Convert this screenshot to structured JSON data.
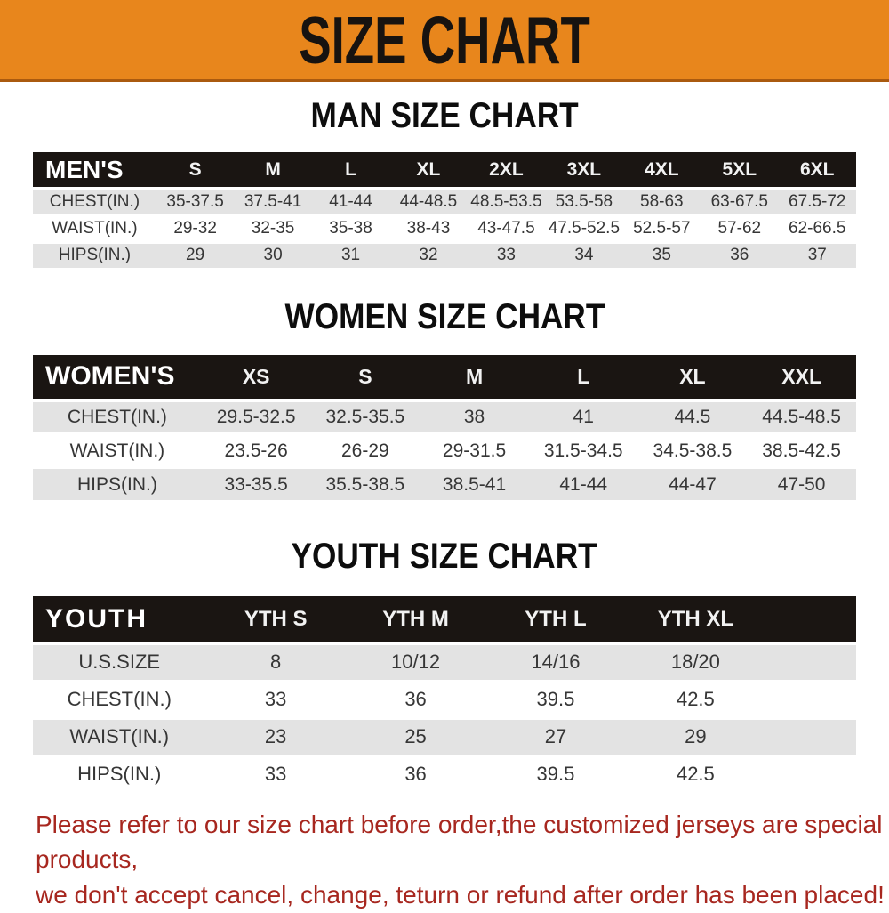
{
  "banner": {
    "title": "SIZE CHART"
  },
  "colors": {
    "banner_bg": "#e8861c",
    "banner_border": "#aa5a0f",
    "table_header_bg": "#1a1512",
    "row_alt_gray": "#e3e3e3",
    "note_red": "#a7271f"
  },
  "sections": [
    {
      "id": "men",
      "heading": "MAN SIZE CHART",
      "table": {
        "header": [
          "MEN'S",
          "S",
          "M",
          "L",
          "XL",
          "2XL",
          "3XL",
          "4XL",
          "5XL",
          "6XL"
        ],
        "rows": [
          [
            "CHEST(IN.)",
            "35-37.5",
            "37.5-41",
            "41-44",
            "44-48.5",
            "48.5-53.5",
            "53.5-58",
            "58-63",
            "63-67.5",
            "67.5-72"
          ],
          [
            "WAIST(IN.)",
            "29-32",
            "32-35",
            "35-38",
            "38-43",
            "43-47.5",
            "47.5-52.5",
            "52.5-57",
            "57-62",
            "62-66.5"
          ],
          [
            "HIPS(IN.)",
            "29",
            "30",
            "31",
            "32",
            "33",
            "34",
            "35",
            "36",
            "37"
          ]
        ]
      }
    },
    {
      "id": "women",
      "heading": "WOMEN SIZE CHART",
      "table": {
        "header": [
          "WOMEN'S",
          "XS",
          "S",
          "M",
          "L",
          "XL",
          "XXL"
        ],
        "rows": [
          [
            "CHEST(IN.)",
            "29.5-32.5",
            "32.5-35.5",
            "38",
            "41",
            "44.5",
            "44.5-48.5"
          ],
          [
            "WAIST(IN.)",
            "23.5-26",
            "26-29",
            "29-31.5",
            "31.5-34.5",
            "34.5-38.5",
            "38.5-42.5"
          ],
          [
            "HIPS(IN.)",
            "33-35.5",
            "35.5-38.5",
            "38.5-41",
            "41-44",
            "44-47",
            "47-50"
          ]
        ]
      }
    },
    {
      "id": "youth",
      "heading": "YOUTH SIZE CHART",
      "table": {
        "header": [
          "YOUTH",
          "YTH S",
          "YTH M",
          "YTH L",
          "YTH XL"
        ],
        "rows": [
          [
            "U.S.SIZE",
            "8",
            "10/12",
            "14/16",
            "18/20"
          ],
          [
            "CHEST(IN.)",
            "33",
            "36",
            "39.5",
            "42.5"
          ],
          [
            "WAIST(IN.)",
            "23",
            "25",
            "27",
            "29"
          ],
          [
            "HIPS(IN.)",
            "33",
            "36",
            "39.5",
            "42.5"
          ]
        ]
      }
    }
  ],
  "note": {
    "line1": "Please refer to our size chart before order,the customized jerseys are special products,",
    "line2": "we don't accept cancel, change, teturn or refund after order has been placed!"
  }
}
